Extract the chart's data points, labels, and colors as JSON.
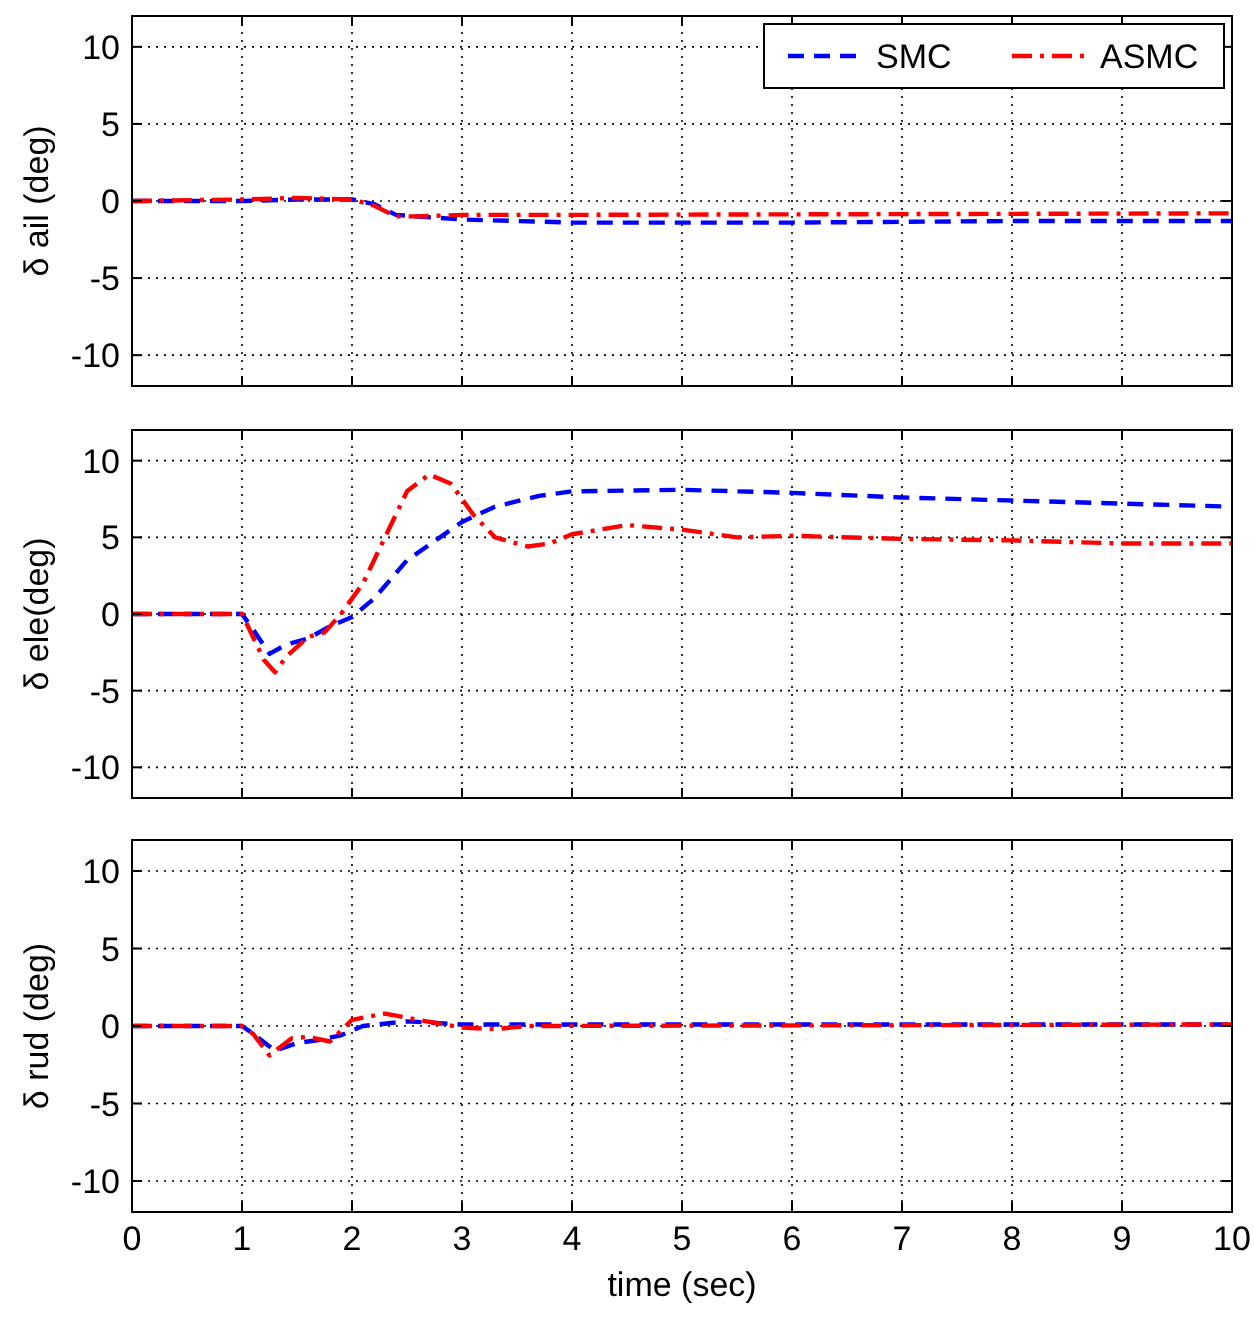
{
  "chart_data": [
    {
      "type": "line",
      "ylabel": "δ ail (deg)",
      "xlim": [
        0,
        10
      ],
      "xticks": [
        0,
        1,
        2,
        3,
        4,
        5,
        6,
        7,
        8,
        9,
        10
      ],
      "ylim": [
        -12,
        12
      ],
      "yticks": [
        -10,
        -5,
        0,
        5,
        10
      ],
      "grid": true,
      "legend": "top right",
      "tick_labels": "y",
      "series": [
        {
          "name": "SMC",
          "color": "#0000ff",
          "line_style": "dashed",
          "x": [
            0,
            1,
            1.5,
            2,
            2.2,
            2.4,
            3,
            4,
            6,
            8,
            10
          ],
          "values": [
            0,
            0,
            0.1,
            0.1,
            -0.2,
            -0.9,
            -1.2,
            -1.4,
            -1.4,
            -1.3,
            -1.3
          ]
        },
        {
          "name": "ASMC",
          "color": "#ff0000",
          "line_style": "dashdot",
          "x": [
            0,
            1,
            1.5,
            2,
            2.2,
            2.4,
            2.6,
            3,
            4,
            10
          ],
          "values": [
            0,
            0.1,
            0.2,
            0.1,
            -0.3,
            -1.0,
            -1.0,
            -0.9,
            -0.9,
            -0.8
          ]
        }
      ]
    },
    {
      "type": "line",
      "ylabel": "δ ele(deg)",
      "xlim": [
        0,
        10
      ],
      "xticks": [
        0,
        1,
        2,
        3,
        4,
        5,
        6,
        7,
        8,
        9,
        10
      ],
      "ylim": [
        -12,
        12
      ],
      "yticks": [
        -10,
        -5,
        0,
        5,
        10
      ],
      "grid": true,
      "tick_labels": "y",
      "series": [
        {
          "color": "#0000ff",
          "line_style": "dashed",
          "x": [
            0,
            1,
            1.1,
            1.25,
            1.4,
            1.6,
            1.8,
            2,
            2.2,
            2.5,
            2.8,
            3,
            3.3,
            3.7,
            4,
            5,
            6,
            7,
            8,
            9,
            10
          ],
          "values": [
            0,
            0,
            -1,
            -2.6,
            -2,
            -1.6,
            -0.8,
            -0.2,
            1,
            3.5,
            5,
            6,
            7,
            7.7,
            8,
            8.1,
            7.9,
            7.6,
            7.4,
            7.2,
            7.0
          ]
        },
        {
          "color": "#ff0000",
          "line_style": "dashdot",
          "x": [
            0,
            1,
            1.1,
            1.2,
            1.3,
            1.4,
            1.6,
            1.75,
            1.9,
            2.1,
            2.3,
            2.5,
            2.7,
            2.9,
            3.1,
            3.3,
            3.6,
            3.8,
            4,
            4.5,
            5,
            5.5,
            6,
            7,
            8,
            9,
            10
          ],
          "values": [
            0,
            0,
            -1.5,
            -3,
            -3.8,
            -2.8,
            -1.5,
            -1.2,
            0,
            2,
            5,
            8,
            9.1,
            8.5,
            6.5,
            5,
            4.4,
            4.6,
            5.2,
            5.8,
            5.5,
            5.0,
            5.1,
            4.9,
            4.8,
            4.6,
            4.6
          ]
        }
      ]
    },
    {
      "type": "line",
      "xlabel": "time (sec)",
      "ylabel": "δ rud (deg)",
      "xlim": [
        0,
        10
      ],
      "xticks": [
        0,
        1,
        2,
        3,
        4,
        5,
        6,
        7,
        8,
        9,
        10
      ],
      "ylim": [
        -12,
        12
      ],
      "yticks": [
        -10,
        -5,
        0,
        5,
        10
      ],
      "grid": true,
      "series": [
        {
          "color": "#0000ff",
          "line_style": "dashed",
          "x": [
            0,
            1,
            1.1,
            1.3,
            1.5,
            1.7,
            1.9,
            2.1,
            2.5,
            3,
            10
          ],
          "values": [
            0,
            0,
            -0.5,
            -1.6,
            -1.1,
            -0.9,
            -0.6,
            0,
            0.3,
            0.1,
            0.1
          ]
        },
        {
          "color": "#ff0000",
          "line_style": "dashdot",
          "x": [
            0,
            1,
            1.1,
            1.25,
            1.45,
            1.6,
            1.8,
            2,
            2.3,
            2.6,
            3,
            3.3,
            3.6,
            10
          ],
          "values": [
            0,
            0,
            -0.5,
            -1.9,
            -0.8,
            -0.7,
            -1.0,
            0.4,
            0.8,
            0.4,
            -0.1,
            -0.2,
            0,
            0.1
          ]
        }
      ]
    }
  ]
}
